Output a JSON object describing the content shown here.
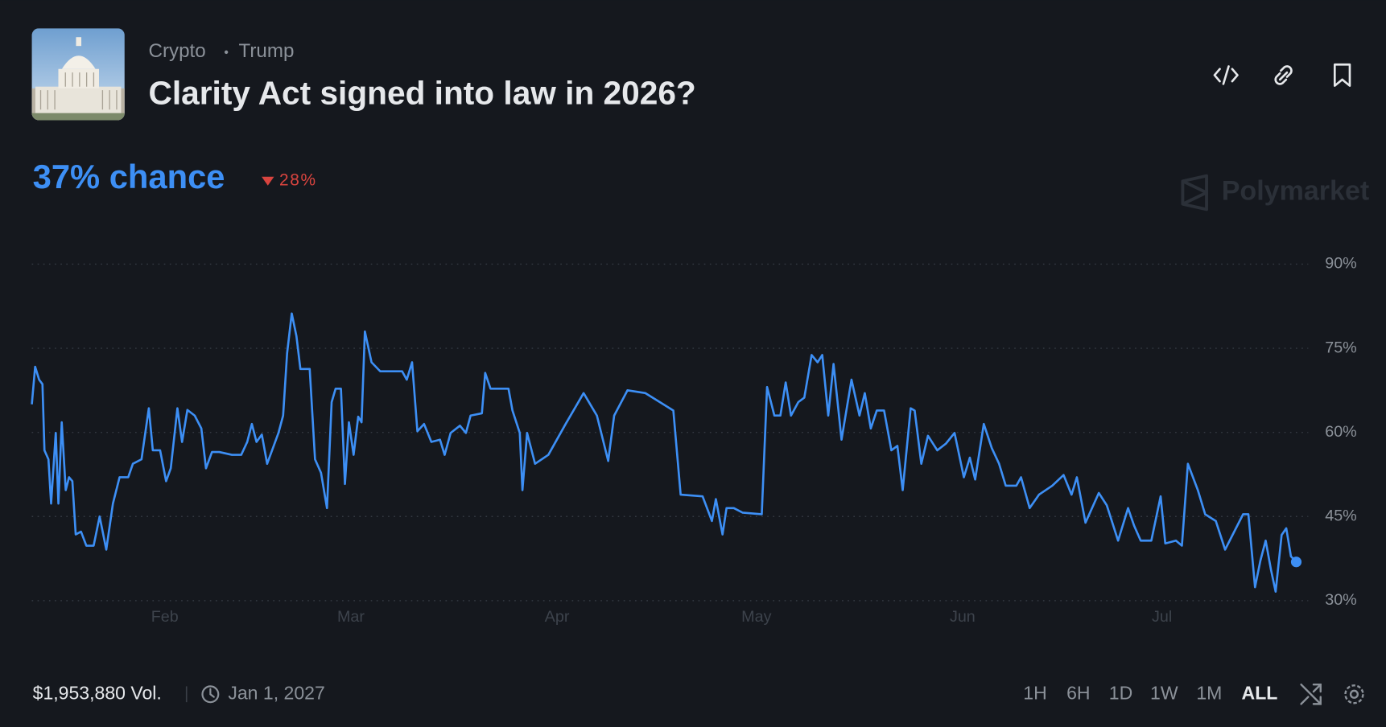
{
  "breadcrumbs": [
    "Crypto",
    "Trump"
  ],
  "title": "Clarity Act signed into law in 2026?",
  "chance": "37% chance",
  "change": "28%",
  "brand": "Polymarket",
  "volume": "$1,953,880 Vol.",
  "end_date": "Jan 1, 2027",
  "timeframes": [
    "1H",
    "6H",
    "1D",
    "1W",
    "1M",
    "ALL"
  ],
  "chart_data": {
    "type": "line",
    "color": "#3d8ff5",
    "grid": true,
    "xlim": [
      12,
      204
    ],
    "ylim": [
      30,
      90
    ],
    "xticks": [
      {
        "value": 32,
        "label": "Feb"
      },
      {
        "value": 60,
        "label": "Mar"
      },
      {
        "value": 91,
        "label": "Apr"
      },
      {
        "value": 121,
        "label": "May"
      },
      {
        "value": 152,
        "label": "Jun"
      },
      {
        "value": 182,
        "label": "Jul"
      }
    ],
    "yticks": [
      {
        "value": 30,
        "label": "30%"
      },
      {
        "value": 45,
        "label": "45%"
      },
      {
        "value": 60,
        "label": "60%"
      },
      {
        "value": 75,
        "label": "75%"
      },
      {
        "value": 90,
        "label": "90%"
      }
    ],
    "x": [
      12.0,
      12.5,
      13.1,
      13.6,
      13.9,
      14.5,
      14.9,
      15.6,
      16.0,
      16.5,
      17.1,
      17.6,
      18.1,
      18.6,
      19.4,
      20.2,
      21.3,
      22.2,
      23.2,
      24.2,
      25.2,
      26.5,
      27.2,
      28.5,
      29.6,
      30.2,
      31.3,
      32.2,
      32.9,
      33.9,
      34.6,
      35.4,
      36.5,
      37.5,
      38.2,
      39.1,
      40.2,
      42.1,
      43.5,
      44.4,
      45.1,
      45.8,
      46.6,
      47.4,
      49.1,
      49.8,
      50.4,
      51.1,
      51.8,
      52.4,
      53.8,
      54.6,
      55.5,
      56.4,
      57.1,
      57.7,
      58.5,
      59.1,
      59.7,
      60.4,
      61.1,
      61.6,
      62.1,
      63.1,
      64.4,
      66.4,
      67.7,
      68.4,
      69.2,
      70.0,
      71.0,
      72.1,
      73.4,
      74.1,
      75.0,
      76.4,
      77.3,
      78.0,
      79.7,
      80.2,
      81.0,
      83.7,
      84.3,
      85.4,
      85.8,
      86.5,
      87.7,
      89.7,
      92.3,
      95.0,
      97.0,
      98.7,
      99.6,
      101.6,
      104.3,
      107.0,
      108.5,
      109.6,
      112.9,
      114.3,
      114.9,
      115.9,
      116.5,
      117.6,
      118.9,
      121.8,
      122.6,
      123.7,
      124.6,
      125.4,
      126.2,
      127.3,
      128.2,
      129.3,
      130.2,
      130.9,
      131.8,
      132.6,
      133.8,
      135.3,
      136.5,
      137.3,
      138.2,
      139.1,
      140.2,
      141.3,
      142.2,
      143.0,
      144.2,
      144.8,
      145.8,
      146.8,
      148.2,
      149.5,
      150.8,
      152.2,
      153.1,
      153.9,
      155.2,
      156.4,
      157.5,
      158.5,
      160.1,
      160.8,
      162.1,
      163.5,
      165.5,
      167.2,
      168.4,
      169.2,
      170.5,
      172.5,
      173.7,
      175.4,
      176.9,
      177.8,
      178.8,
      180.4,
      181.8,
      182.5,
      184.1,
      185.0,
      185.9,
      187.4,
      188.5,
      190.1,
      191.5,
      193.0,
      194.2,
      195.0,
      196.0,
      196.8,
      197.6,
      198.4,
      199.1,
      200.0,
      200.7,
      201.4,
      202.2
    ],
    "values": [
      65.0,
      71.7,
      69.4,
      68.6,
      56.8,
      55.2,
      47.3,
      59.9,
      47.3,
      61.8,
      49.7,
      52.0,
      51.3,
      41.8,
      42.3,
      39.8,
      39.8,
      45.0,
      39.1,
      47.3,
      52.0,
      52.0,
      54.4,
      55.2,
      64.3,
      56.8,
      56.8,
      51.3,
      53.6,
      64.3,
      58.3,
      64.0,
      63.0,
      60.7,
      53.6,
      56.5,
      56.5,
      56.0,
      56.0,
      58.3,
      61.5,
      58.3,
      59.6,
      54.4,
      59.9,
      63.0,
      74.1,
      81.2,
      77.2,
      71.3,
      71.3,
      55.2,
      52.8,
      46.5,
      65.4,
      67.8,
      67.8,
      50.8,
      61.8,
      56.0,
      62.8,
      61.8,
      78.0,
      72.5,
      70.9,
      70.9,
      70.9,
      69.4,
      72.5,
      60.2,
      61.5,
      58.3,
      58.7,
      56.0,
      59.9,
      61.2,
      59.9,
      63.0,
      63.4,
      70.6,
      67.8,
      67.8,
      63.9,
      59.9,
      49.7,
      59.9,
      54.4,
      56.0,
      61.5,
      67.0,
      63.0,
      54.9,
      63.0,
      67.5,
      67.0,
      65.0,
      63.9,
      48.9,
      48.6,
      44.2,
      48.1,
      41.8,
      46.5,
      46.5,
      45.7,
      45.4,
      68.1,
      63.0,
      63.0,
      68.9,
      63.0,
      65.4,
      66.2,
      73.8,
      72.5,
      73.8,
      63.0,
      72.2,
      58.7,
      69.4,
      63.0,
      67.0,
      60.7,
      63.9,
      63.9,
      56.8,
      57.6,
      49.7,
      64.3,
      63.9,
      54.4,
      59.4,
      56.8,
      58.0,
      59.9,
      52.0,
      55.5,
      51.6,
      61.5,
      57.2,
      54.4,
      50.5,
      50.5,
      52.0,
      46.5,
      48.9,
      50.5,
      52.4,
      48.9,
      52.0,
      43.9,
      49.2,
      47.0,
      40.7,
      46.5,
      43.4,
      40.7,
      40.7,
      48.6,
      40.2,
      40.7,
      39.8,
      54.4,
      49.7,
      45.4,
      44.2,
      39.1,
      42.6,
      45.4,
      45.4,
      32.4,
      37.1,
      40.7,
      35.5,
      31.6,
      41.7,
      42.9,
      37.9,
      36.9
    ]
  }
}
